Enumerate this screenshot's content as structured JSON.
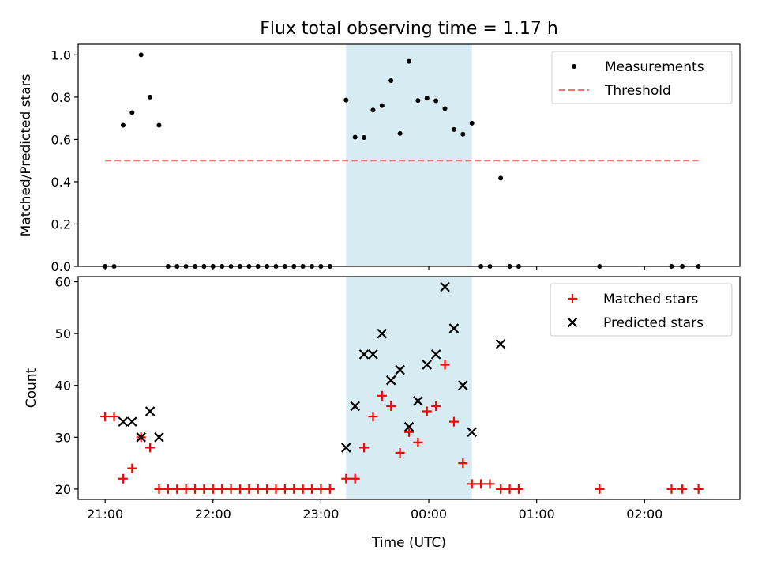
{
  "chart_data": [
    {
      "type": "scatter",
      "title": "Flux total observing time = 1.17 h",
      "xlabel": "",
      "ylabel": "Matched/Predicted stars",
      "xlim": [
        "20:45",
        "02:53"
      ],
      "ylim": [
        0,
        1.05
      ],
      "yticks": [
        "0.0",
        "0.2",
        "0.4",
        "0.6",
        "0.8",
        "1.0"
      ],
      "shaded_region": {
        "from": "23:14",
        "to": "00:24",
        "color": "#add8e6"
      },
      "legend": {
        "position": "top-right",
        "entries": [
          "Measurements",
          "Threshold"
        ]
      },
      "series": [
        {
          "name": "Measurements",
          "marker": "dot",
          "color": "#000000",
          "points": [
            {
              "x": "21:00",
              "y": 0
            },
            {
              "x": "21:05",
              "y": 0
            },
            {
              "x": "21:10",
              "y": 0.667
            },
            {
              "x": "21:15",
              "y": 0.727
            },
            {
              "x": "21:20",
              "y": 1.0
            },
            {
              "x": "21:25",
              "y": 0.8
            },
            {
              "x": "21:30",
              "y": 0.667
            },
            {
              "x": "21:35",
              "y": 0
            },
            {
              "x": "21:40",
              "y": 0
            },
            {
              "x": "21:45",
              "y": 0
            },
            {
              "x": "21:50",
              "y": 0
            },
            {
              "x": "21:55",
              "y": 0
            },
            {
              "x": "22:00",
              "y": 0
            },
            {
              "x": "22:05",
              "y": 0
            },
            {
              "x": "22:10",
              "y": 0
            },
            {
              "x": "22:15",
              "y": 0
            },
            {
              "x": "22:20",
              "y": 0
            },
            {
              "x": "22:25",
              "y": 0
            },
            {
              "x": "22:30",
              "y": 0
            },
            {
              "x": "22:35",
              "y": 0
            },
            {
              "x": "22:40",
              "y": 0
            },
            {
              "x": "22:45",
              "y": 0
            },
            {
              "x": "22:50",
              "y": 0
            },
            {
              "x": "22:55",
              "y": 0
            },
            {
              "x": "23:00",
              "y": 0
            },
            {
              "x": "23:05",
              "y": 0
            },
            {
              "x": "23:14",
              "y": 0.786
            },
            {
              "x": "23:19",
              "y": 0.611
            },
            {
              "x": "23:24",
              "y": 0.609
            },
            {
              "x": "23:29",
              "y": 0.739
            },
            {
              "x": "23:34",
              "y": 0.76
            },
            {
              "x": "23:39",
              "y": 0.878
            },
            {
              "x": "23:44",
              "y": 0.628
            },
            {
              "x": "23:49",
              "y": 0.969
            },
            {
              "x": "23:54",
              "y": 0.784
            },
            {
              "x": "23:59",
              "y": 0.795
            },
            {
              "x": "00:04",
              "y": 0.783
            },
            {
              "x": "00:09",
              "y": 0.746
            },
            {
              "x": "00:14",
              "y": 0.647
            },
            {
              "x": "00:19",
              "y": 0.625
            },
            {
              "x": "00:24",
              "y": 0.677
            },
            {
              "x": "00:29",
              "y": 0
            },
            {
              "x": "00:34",
              "y": 0
            },
            {
              "x": "00:40",
              "y": 0.417
            },
            {
              "x": "00:45",
              "y": 0
            },
            {
              "x": "00:50",
              "y": 0
            },
            {
              "x": "01:35",
              "y": 0
            },
            {
              "x": "02:15",
              "y": 0
            },
            {
              "x": "02:21",
              "y": 0
            },
            {
              "x": "02:30",
              "y": 0
            }
          ]
        },
        {
          "name": "Threshold",
          "marker": "dashed-line",
          "color": "#ff7070",
          "points": [
            {
              "x": "21:00",
              "y": 0.5
            },
            {
              "x": "02:30",
              "y": 0.5
            }
          ]
        }
      ]
    },
    {
      "type": "scatter",
      "title": "",
      "xlabel": "Time (UTC)",
      "ylabel": "Count",
      "xlim": [
        "20:45",
        "02:53"
      ],
      "ylim": [
        18,
        61
      ],
      "xticks": [
        "21:00",
        "22:00",
        "23:00",
        "00:00",
        "01:00",
        "02:00"
      ],
      "yticks": [
        "20",
        "30",
        "40",
        "50",
        "60"
      ],
      "shaded_region": {
        "from": "23:14",
        "to": "00:24",
        "color": "#add8e6"
      },
      "legend": {
        "position": "top-right",
        "entries": [
          "Matched stars",
          "Predicted stars"
        ]
      },
      "series": [
        {
          "name": "Matched stars",
          "marker": "plus",
          "color": "#ff0000",
          "points": [
            {
              "x": "21:00",
              "y": 34
            },
            {
              "x": "21:05",
              "y": 34
            },
            {
              "x": "21:10",
              "y": 22
            },
            {
              "x": "21:15",
              "y": 24
            },
            {
              "x": "21:20",
              "y": 30
            },
            {
              "x": "21:25",
              "y": 28
            },
            {
              "x": "21:30",
              "y": 20
            },
            {
              "x": "21:35",
              "y": 20
            },
            {
              "x": "21:40",
              "y": 20
            },
            {
              "x": "21:45",
              "y": 20
            },
            {
              "x": "21:50",
              "y": 20
            },
            {
              "x": "21:55",
              "y": 20
            },
            {
              "x": "22:00",
              "y": 20
            },
            {
              "x": "22:05",
              "y": 20
            },
            {
              "x": "22:10",
              "y": 20
            },
            {
              "x": "22:15",
              "y": 20
            },
            {
              "x": "22:20",
              "y": 20
            },
            {
              "x": "22:25",
              "y": 20
            },
            {
              "x": "22:30",
              "y": 20
            },
            {
              "x": "22:35",
              "y": 20
            },
            {
              "x": "22:40",
              "y": 20
            },
            {
              "x": "22:45",
              "y": 20
            },
            {
              "x": "22:50",
              "y": 20
            },
            {
              "x": "22:55",
              "y": 20
            },
            {
              "x": "23:00",
              "y": 20
            },
            {
              "x": "23:05",
              "y": 20
            },
            {
              "x": "23:14",
              "y": 22
            },
            {
              "x": "23:19",
              "y": 22
            },
            {
              "x": "23:24",
              "y": 28
            },
            {
              "x": "23:29",
              "y": 34
            },
            {
              "x": "23:34",
              "y": 38
            },
            {
              "x": "23:39",
              "y": 36
            },
            {
              "x": "23:44",
              "y": 27
            },
            {
              "x": "23:49",
              "y": 31
            },
            {
              "x": "23:54",
              "y": 29
            },
            {
              "x": "23:59",
              "y": 35
            },
            {
              "x": "00:04",
              "y": 36
            },
            {
              "x": "00:09",
              "y": 44
            },
            {
              "x": "00:14",
              "y": 33
            },
            {
              "x": "00:19",
              "y": 25
            },
            {
              "x": "00:24",
              "y": 21
            },
            {
              "x": "00:29",
              "y": 21
            },
            {
              "x": "00:34",
              "y": 21
            },
            {
              "x": "00:40",
              "y": 20
            },
            {
              "x": "00:45",
              "y": 20
            },
            {
              "x": "00:50",
              "y": 20
            },
            {
              "x": "01:35",
              "y": 20
            },
            {
              "x": "02:15",
              "y": 20
            },
            {
              "x": "02:21",
              "y": 20
            },
            {
              "x": "02:30",
              "y": 20
            }
          ]
        },
        {
          "name": "Predicted stars",
          "marker": "x",
          "color": "#000000",
          "points": [
            {
              "x": "21:10",
              "y": 33
            },
            {
              "x": "21:15",
              "y": 33
            },
            {
              "x": "21:20",
              "y": 30
            },
            {
              "x": "21:25",
              "y": 35
            },
            {
              "x": "21:30",
              "y": 30
            },
            {
              "x": "23:14",
              "y": 28
            },
            {
              "x": "23:19",
              "y": 36
            },
            {
              "x": "23:24",
              "y": 46
            },
            {
              "x": "23:29",
              "y": 46
            },
            {
              "x": "23:34",
              "y": 50
            },
            {
              "x": "23:39",
              "y": 41
            },
            {
              "x": "23:44",
              "y": 43
            },
            {
              "x": "23:49",
              "y": 32
            },
            {
              "x": "23:54",
              "y": 37
            },
            {
              "x": "23:59",
              "y": 44
            },
            {
              "x": "00:04",
              "y": 46
            },
            {
              "x": "00:09",
              "y": 59
            },
            {
              "x": "00:14",
              "y": 51
            },
            {
              "x": "00:19",
              "y": 40
            },
            {
              "x": "00:24",
              "y": 31
            },
            {
              "x": "00:40",
              "y": 48
            }
          ]
        }
      ]
    }
  ]
}
